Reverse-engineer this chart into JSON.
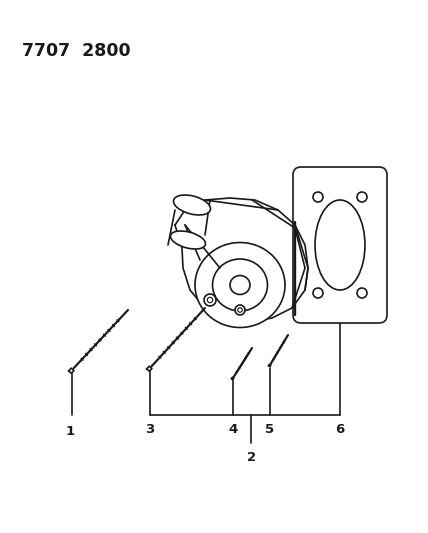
{
  "title": "7707  2800",
  "bg_color": "#ffffff",
  "line_color": "#1a1a1a",
  "fig_width": 4.28,
  "fig_height": 5.33,
  "dpi": 100
}
